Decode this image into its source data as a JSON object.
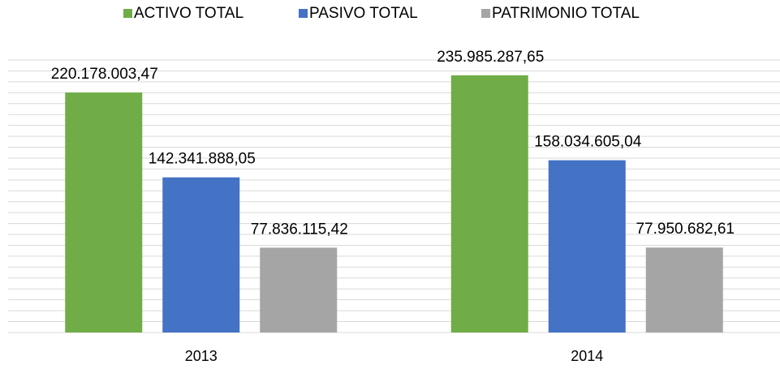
{
  "chart_data": {
    "type": "bar",
    "categories": [
      "2013",
      "2014"
    ],
    "series": [
      {
        "name": "ACTIVO TOTAL",
        "color": "#70ad47",
        "values": [
          220178003.47,
          235985287.65
        ],
        "value_labels": [
          "220.178.003,47",
          "235.985.287,65"
        ]
      },
      {
        "name": "PASIVO TOTAL",
        "color": "#4472c4",
        "values": [
          142341888.05,
          158034605.04
        ],
        "value_labels": [
          "142.341.888,05",
          "158.034.605,04"
        ]
      },
      {
        "name": "PATRIMONIO TOTAL",
        "color": "#a5a5a5",
        "values": [
          77836115.42,
          77950682.61
        ],
        "value_labels": [
          "77.836.115,42",
          "77.950.682,61"
        ]
      }
    ],
    "ylim": [
      0,
      250000000
    ],
    "yticks": [
      0,
      10000000,
      20000000,
      30000000,
      40000000,
      50000000,
      60000000,
      70000000,
      80000000,
      90000000,
      100000000,
      110000000,
      120000000,
      130000000,
      140000000,
      150000000,
      160000000,
      170000000,
      180000000,
      190000000,
      200000000,
      210000000,
      220000000,
      230000000,
      240000000,
      250000000
    ],
    "grid": true,
    "legend": "top"
  }
}
